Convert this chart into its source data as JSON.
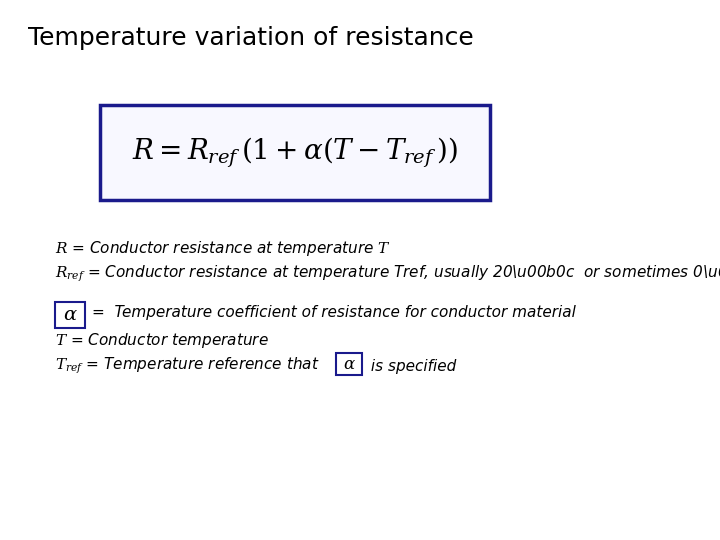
{
  "title": "Temperature variation of resistance",
  "title_fontsize": 18,
  "background_color": "#ffffff",
  "formula_fontsize": 18,
  "formula_color": "#000000",
  "box_color": "#1a1a8c",
  "text_fontsize": 11,
  "fig_width": 7.2,
  "fig_height": 5.4,
  "fig_dpi": 100
}
